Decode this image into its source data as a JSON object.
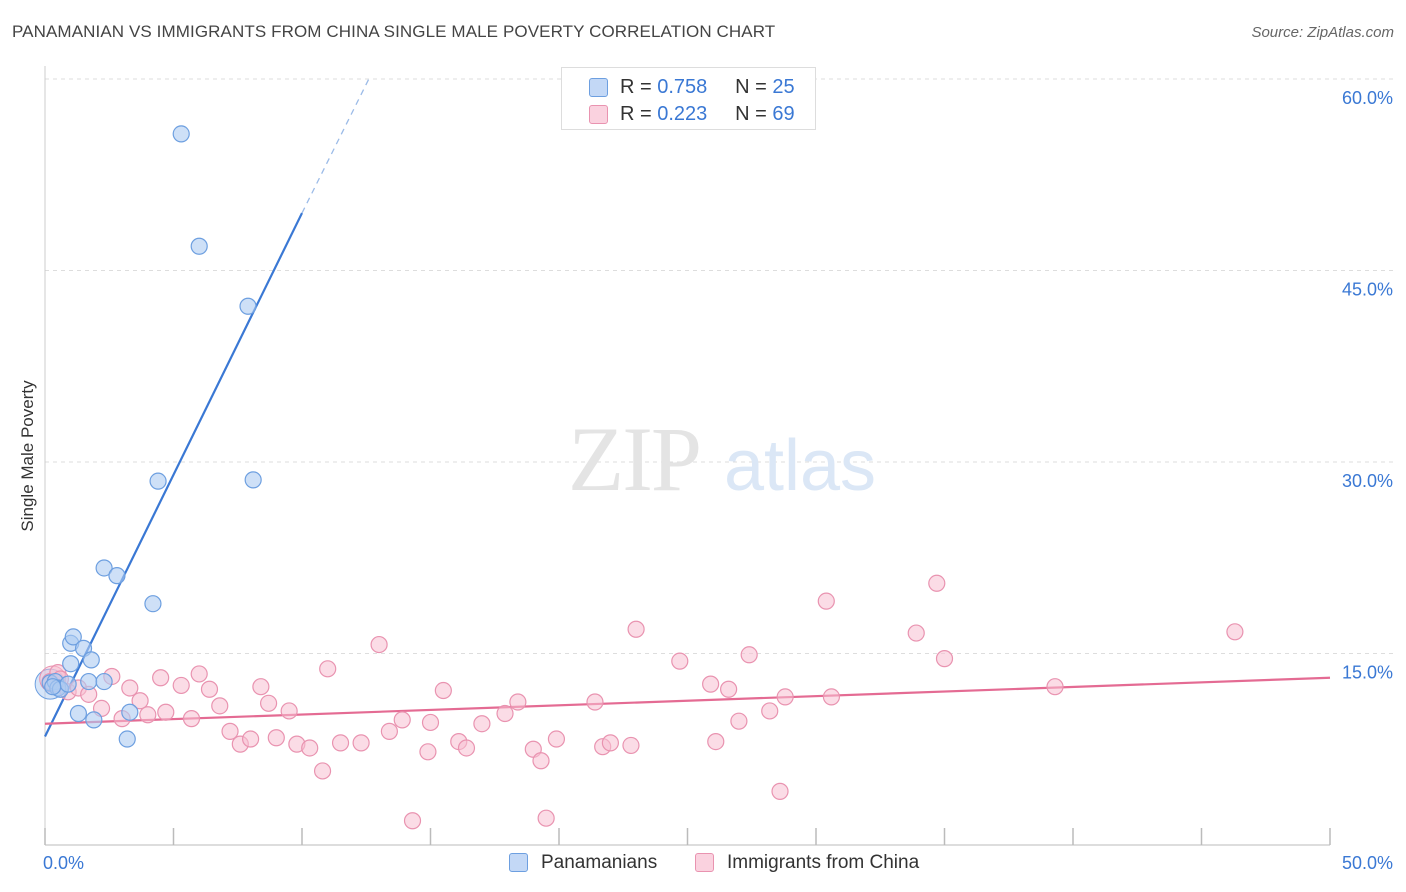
{
  "title": "PANAMANIAN VS IMMIGRANTS FROM CHINA SINGLE MALE POVERTY CORRELATION CHART",
  "source": "Source: ZipAtlas.com",
  "watermark": {
    "zip": "ZIP",
    "atlas": "atlas"
  },
  "legend_top": [
    {
      "r_label": "R =",
      "r_value": "0.758",
      "n_label": "N =",
      "n_value": "25"
    },
    {
      "r_label": "R =",
      "r_value": "0.223",
      "n_label": "N =",
      "n_value": "69"
    }
  ],
  "legend_bottom": [
    "Panamanians",
    "Immigrants from China"
  ],
  "colors": {
    "blue_fill": "#aecbf2",
    "blue_stroke": "#6d9fe0",
    "blue_line": "#3a78d4",
    "pink_fill": "#f7c0d2",
    "pink_stroke": "#e993b0",
    "pink_line": "#e46b93",
    "axis_text": "#3a78d4",
    "grid": "#dddddd"
  },
  "chart_data": {
    "type": "scatter",
    "title": "PANAMANIAN VS IMMIGRANTS FROM CHINA SINGLE MALE POVERTY CORRELATION CHART",
    "xlabel": "",
    "ylabel": "Single Male Poverty",
    "xlim": [
      0,
      50
    ],
    "ylim": [
      0,
      60
    ],
    "x_tick_labels": [
      "0.0%",
      "50.0%"
    ],
    "y_ticks": [
      15,
      30,
      45,
      60
    ],
    "y_tick_labels": [
      "15.0%",
      "30.0%",
      "45.0%",
      "60.0%"
    ],
    "grid": true,
    "legend_position": "top-center",
    "series": [
      {
        "name": "Panamanians",
        "r": 0.758,
        "n": 25,
        "trend": {
          "x0": 0,
          "y0": 8.5,
          "x1": 10,
          "y1": 49.5,
          "x1_dashed": 12.6,
          "y1_dashed": 60
        },
        "points": [
          [
            0.2,
            12.7
          ],
          [
            0.4,
            12.8
          ],
          [
            0.5,
            12.3
          ],
          [
            0.6,
            12.2
          ],
          [
            0.9,
            12.6
          ],
          [
            1.0,
            15.8
          ],
          [
            1.0,
            14.2
          ],
          [
            1.1,
            16.3
          ],
          [
            1.3,
            10.3
          ],
          [
            1.5,
            15.4
          ],
          [
            1.7,
            12.8
          ],
          [
            1.8,
            14.5
          ],
          [
            1.9,
            9.8
          ],
          [
            2.3,
            12.8
          ],
          [
            2.3,
            21.7
          ],
          [
            2.8,
            21.1
          ],
          [
            3.2,
            8.3
          ],
          [
            3.3,
            10.4
          ],
          [
            4.2,
            18.9
          ],
          [
            4.4,
            28.5
          ],
          [
            5.3,
            55.7
          ],
          [
            6.0,
            46.9
          ],
          [
            7.9,
            42.2
          ],
          [
            8.1,
            28.6
          ],
          [
            0.3,
            12.4
          ]
        ]
      },
      {
        "name": "Immigrants from China",
        "r": 0.223,
        "n": 69,
        "trend": {
          "x0": 0,
          "y0": 9.5,
          "x1": 50,
          "y1": 13.1
        },
        "points": [
          [
            0.2,
            12.8
          ],
          [
            0.5,
            13.5
          ],
          [
            0.9,
            12.0
          ],
          [
            1.3,
            12.3
          ],
          [
            1.7,
            11.8
          ],
          [
            2.2,
            10.7
          ],
          [
            2.6,
            13.2
          ],
          [
            3.0,
            9.9
          ],
          [
            3.3,
            12.3
          ],
          [
            3.7,
            11.3
          ],
          [
            4.0,
            10.2
          ],
          [
            4.5,
            13.1
          ],
          [
            4.7,
            10.4
          ],
          [
            5.3,
            12.5
          ],
          [
            5.7,
            9.9
          ],
          [
            6.0,
            13.4
          ],
          [
            6.4,
            12.2
          ],
          [
            6.8,
            10.9
          ],
          [
            7.2,
            8.9
          ],
          [
            7.6,
            7.9
          ],
          [
            8.0,
            8.3
          ],
          [
            8.4,
            12.4
          ],
          [
            8.7,
            11.1
          ],
          [
            9.0,
            8.4
          ],
          [
            9.5,
            10.5
          ],
          [
            9.8,
            7.9
          ],
          [
            10.3,
            7.6
          ],
          [
            10.8,
            5.8
          ],
          [
            11.0,
            13.8
          ],
          [
            11.5,
            8.0
          ],
          [
            12.3,
            8.0
          ],
          [
            13.0,
            15.7
          ],
          [
            13.4,
            8.9
          ],
          [
            13.9,
            9.8
          ],
          [
            14.3,
            1.9
          ],
          [
            14.9,
            7.3
          ],
          [
            15.0,
            9.6
          ],
          [
            15.5,
            12.1
          ],
          [
            16.1,
            8.1
          ],
          [
            16.4,
            7.6
          ],
          [
            17.0,
            9.5
          ],
          [
            17.9,
            10.3
          ],
          [
            18.4,
            11.2
          ],
          [
            19.0,
            7.5
          ],
          [
            19.3,
            6.6
          ],
          [
            19.5,
            2.1
          ],
          [
            19.9,
            8.3
          ],
          [
            21.4,
            11.2
          ],
          [
            21.7,
            7.7
          ],
          [
            22.0,
            8.0
          ],
          [
            22.8,
            7.8
          ],
          [
            23.0,
            16.9
          ],
          [
            24.7,
            14.4
          ],
          [
            25.9,
            12.6
          ],
          [
            26.1,
            8.1
          ],
          [
            26.6,
            12.2
          ],
          [
            27.0,
            9.7
          ],
          [
            27.4,
            14.9
          ],
          [
            28.2,
            10.5
          ],
          [
            28.6,
            4.2
          ],
          [
            28.8,
            11.6
          ],
          [
            30.4,
            19.1
          ],
          [
            30.6,
            11.6
          ],
          [
            33.9,
            16.6
          ],
          [
            34.7,
            20.5
          ],
          [
            35.0,
            14.6
          ],
          [
            39.3,
            12.4
          ],
          [
            46.3,
            16.7
          ],
          [
            0.6,
            13.0
          ]
        ]
      }
    ]
  }
}
